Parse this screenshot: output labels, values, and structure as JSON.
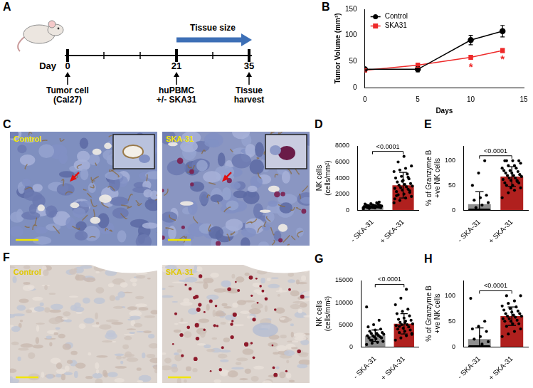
{
  "timeline": {
    "panel": "A",
    "axis_label": "Day",
    "ticks": [
      0,
      7,
      14,
      21,
      28,
      35
    ],
    "events": [
      {
        "day": 0,
        "text": [
          "Tumor cell",
          "(Cal27)"
        ]
      },
      {
        "day": 21,
        "text": [
          "huPBMC",
          "+/- SKA31"
        ]
      },
      {
        "day": 35,
        "text": [
          "Tissue",
          "harvest"
        ]
      }
    ],
    "period": {
      "from": 21,
      "to": 35,
      "text": "Tissue size"
    }
  },
  "chart_data": [
    {
      "panel": "B",
      "type": "line",
      "x_label": "Days",
      "y_label": "Tumor Volume (mm³)",
      "xlim": [
        0,
        15
      ],
      "xticks": [
        0,
        5,
        10,
        15
      ],
      "ylim": [
        0,
        150
      ],
      "yticks": [
        0,
        50,
        100,
        150
      ],
      "x": [
        0,
        5,
        10,
        13
      ],
      "series": [
        {
          "name": "Control",
          "color": "#000000",
          "marker": "circle",
          "values": [
            35,
            35,
            91,
            108
          ],
          "errors": [
            3,
            5,
            9,
            11
          ]
        },
        {
          "name": "SKA31",
          "color": "#ee2a2a",
          "marker": "square",
          "values": [
            33,
            43,
            58,
            71
          ],
          "errors": [
            3,
            4,
            4,
            4
          ]
        }
      ],
      "legend": "top-left",
      "grid": false,
      "annotations": [
        {
          "text": "*",
          "x": 10,
          "y": 42
        },
        {
          "text": "*",
          "x": 13,
          "y": 57
        }
      ]
    },
    {
      "panel": "D",
      "type": "bar",
      "categories": [
        "- SKA-31",
        "+ SKA-31"
      ],
      "y_label": "NK cells (cells/mm²)",
      "ylim": [
        0,
        8000
      ],
      "yticks": [
        0,
        2000,
        4000,
        6000,
        8000
      ],
      "values": [
        420,
        3100
      ],
      "errors": [
        220,
        1600
      ],
      "colors": [
        "#8f8f8f",
        "#b0201e"
      ],
      "points": [
        [
          150,
          200,
          250,
          300,
          300,
          350,
          350,
          400,
          400,
          400,
          450,
          450,
          500,
          500,
          550,
          550,
          600,
          600,
          650,
          700,
          750,
          800,
          900,
          300,
          250,
          350,
          450,
          500,
          600,
          1000
        ],
        [
          900,
          1200,
          1500,
          1700,
          1900,
          2000,
          2200,
          2300,
          2500,
          2600,
          2700,
          2800,
          2900,
          3000,
          3100,
          3200,
          3300,
          3500,
          3700,
          3900,
          4000,
          4200,
          4500,
          4800,
          5000,
          5200,
          5500,
          6000,
          6700,
          2400,
          1800,
          3600,
          4100,
          1400
        ]
      ],
      "annotations": [
        {
          "text": "<0.0001"
        }
      ],
      "grid": false
    },
    {
      "panel": "E",
      "type": "bar",
      "categories": [
        "- SKA-31",
        "+ SKA-31"
      ],
      "y_label": "% of Granzyme B +ve NK cells",
      "ylim": [
        0,
        130
      ],
      "yticks": [
        0,
        50,
        100
      ],
      "values": [
        12,
        68
      ],
      "errors": [
        25,
        20
      ],
      "colors": [
        "#8f8f8f",
        "#b0201e"
      ],
      "points": [
        [
          0,
          0,
          0,
          0,
          0,
          0,
          0,
          0,
          0,
          0,
          0,
          0,
          0,
          0,
          0,
          0,
          0,
          0,
          0,
          0,
          0,
          0,
          0,
          0,
          5,
          10,
          15,
          20,
          25,
          30,
          50,
          75,
          100
        ],
        [
          25,
          35,
          40,
          45,
          50,
          50,
          55,
          55,
          60,
          60,
          62,
          65,
          65,
          68,
          70,
          70,
          72,
          75,
          75,
          78,
          80,
          80,
          85,
          85,
          90,
          90,
          95,
          100,
          100,
          100,
          100,
          45,
          58
        ]
      ],
      "annotations": [
        {
          "text": "<0.0001"
        }
      ],
      "grid": false
    },
    {
      "panel": "G",
      "type": "bar",
      "categories": [
        "- SKA-31",
        "+ SKA-31"
      ],
      "y_label": "NK cells (cells/mm²)",
      "ylim": [
        0,
        15000
      ],
      "yticks": [
        0,
        5000,
        10000,
        15000
      ],
      "values": [
        2500,
        5200
      ],
      "errors": [
        1300,
        2300
      ],
      "colors": [
        "#8f8f8f",
        "#b0201e"
      ],
      "points": [
        [
          500,
          800,
          1000,
          1200,
          1500,
          1800,
          2000,
          2000,
          2200,
          2300,
          2500,
          2500,
          2600,
          2800,
          3000,
          3000,
          3200,
          3500,
          3800,
          4000,
          4500,
          5000,
          6000,
          9000,
          1500,
          2700
        ],
        [
          1500,
          2000,
          2500,
          3000,
          3200,
          3500,
          3800,
          4000,
          4200,
          4500,
          4800,
          5000,
          5000,
          5200,
          5500,
          5800,
          6000,
          6200,
          6500,
          7000,
          7500,
          8000,
          8500,
          9500,
          11000,
          13000,
          2800,
          4600,
          5400
        ]
      ],
      "annotations": [
        {
          "text": "<0.0001"
        }
      ],
      "grid": false
    },
    {
      "panel": "H",
      "type": "bar",
      "categories": [
        "- SKA-31",
        "+ SKA-31"
      ],
      "y_label": "% of Granzyme B +ve NK cells",
      "ylim": [
        0,
        130
      ],
      "yticks": [
        0,
        50,
        100
      ],
      "values": [
        15,
        60
      ],
      "errors": [
        22,
        18
      ],
      "colors": [
        "#8f8f8f",
        "#b0201e"
      ],
      "points": [
        [
          0,
          0,
          0,
          0,
          0,
          0,
          0,
          0,
          0,
          0,
          0,
          0,
          0,
          0,
          0,
          0,
          0,
          0,
          0,
          0,
          0,
          0,
          0,
          0,
          0,
          5,
          10,
          15,
          20,
          30,
          35,
          40,
          50,
          95
        ],
        [
          20,
          25,
          30,
          35,
          40,
          45,
          45,
          50,
          50,
          52,
          55,
          55,
          58,
          60,
          60,
          62,
          65,
          65,
          68,
          70,
          72,
          75,
          78,
          80,
          85,
          90,
          100,
          100
        ]
      ],
      "annotations": [
        {
          "text": "<0.0001"
        }
      ],
      "grid": false
    }
  ],
  "micrographs": [
    {
      "panel": "C",
      "images": [
        "Control",
        "SKA-31"
      ]
    },
    {
      "panel": "F",
      "images": [
        "Control",
        "SKA-31"
      ]
    }
  ]
}
